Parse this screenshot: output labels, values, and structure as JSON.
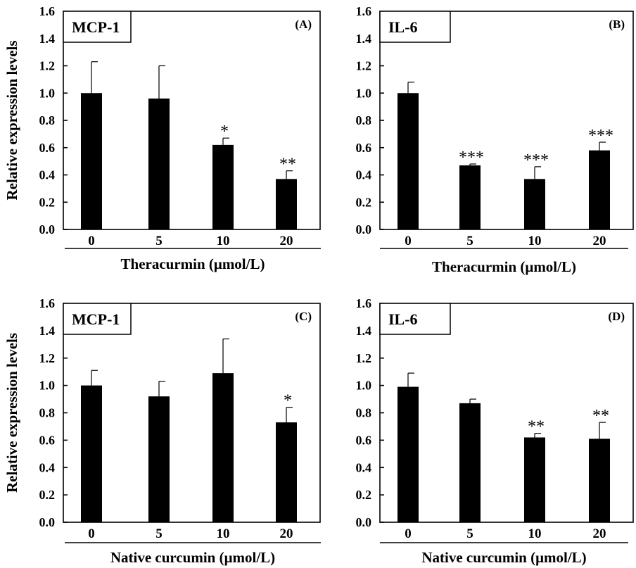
{
  "chart_data": [
    {
      "type": "bar",
      "panel": "(A)",
      "marker": "MCP-1",
      "xlabel": "Theracurmin (μmol/L)",
      "ylabel": "Relative expression levels",
      "categories": [
        "0",
        "5",
        "10",
        "20"
      ],
      "values": [
        1.0,
        0.96,
        0.62,
        0.37
      ],
      "errors": [
        0.23,
        0.24,
        0.05,
        0.06
      ],
      "significance": [
        "",
        "",
        "*",
        "**"
      ],
      "ylim": [
        0,
        1.6
      ],
      "yticks": [
        "0.0",
        "0.2",
        "0.4",
        "0.6",
        "0.8",
        "1.0",
        "1.2",
        "1.4",
        "1.6"
      ],
      "bar_color": "#000000"
    },
    {
      "type": "bar",
      "panel": "(B)",
      "marker": "IL-6",
      "xlabel": "Theracurmin (μmol/L)",
      "ylabel": "",
      "categories": [
        "0",
        "5",
        "10",
        "20"
      ],
      "values": [
        1.0,
        0.47,
        0.37,
        0.58
      ],
      "errors": [
        0.08,
        0.01,
        0.09,
        0.06
      ],
      "significance": [
        "",
        "***",
        "***",
        "***"
      ],
      "ylim": [
        0,
        1.6
      ],
      "yticks": [
        "0.0",
        "0.2",
        "0.4",
        "0.6",
        "0.8",
        "1.0",
        "1.2",
        "1.4",
        "1.6"
      ],
      "bar_color": "#000000"
    },
    {
      "type": "bar",
      "panel": "(C)",
      "marker": "MCP-1",
      "xlabel": "Native curcumin (μmol/L)",
      "ylabel": "Relative expression levels",
      "categories": [
        "0",
        "5",
        "10",
        "20"
      ],
      "values": [
        1.0,
        0.92,
        1.09,
        0.73
      ],
      "errors": [
        0.11,
        0.11,
        0.25,
        0.11
      ],
      "significance": [
        "",
        "",
        "",
        "*"
      ],
      "ylim": [
        0,
        1.6
      ],
      "yticks": [
        "0.0",
        "0.2",
        "0.4",
        "0.6",
        "0.8",
        "1.0",
        "1.2",
        "1.4",
        "1.6"
      ],
      "bar_color": "#000000"
    },
    {
      "type": "bar",
      "panel": "(D)",
      "marker": "IL-6",
      "xlabel": "Native curcumin (μmol/L)",
      "ylabel": "",
      "categories": [
        "0",
        "5",
        "10",
        "20"
      ],
      "values": [
        0.99,
        0.87,
        0.62,
        0.61
      ],
      "errors": [
        0.1,
        0.03,
        0.03,
        0.12
      ],
      "significance": [
        "",
        "",
        "**",
        "**"
      ],
      "ylim": [
        0,
        1.6
      ],
      "yticks": [
        "0.0",
        "0.2",
        "0.4",
        "0.6",
        "0.8",
        "1.0",
        "1.2",
        "1.4",
        "1.6"
      ],
      "bar_color": "#000000"
    }
  ]
}
